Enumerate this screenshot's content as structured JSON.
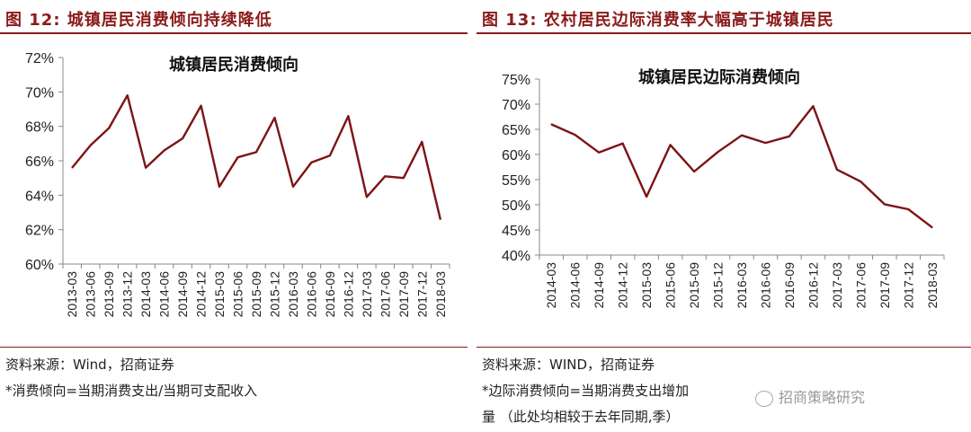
{
  "figures": [
    {
      "header": "图 12:   城镇居民消费倾向持续降低",
      "source": "资料来源：Wind，招商证券",
      "note": "*消费倾向=当期消费支出/当期可支配收入"
    },
    {
      "header": "图 13:   农村居民边际消费率大幅高于城镇居民",
      "source": "资料来源：WIND，招商证券",
      "note": "*边际消费倾向=当期消费支出增加",
      "note2": "量  （此处均相较于去年同期,季）",
      "watermark": "招商策略研究"
    }
  ],
  "chart_data": [
    {
      "type": "line",
      "title": "城镇居民消费倾向",
      "x": [
        "2013-03",
        "2013-06",
        "2013-09",
        "2013-12",
        "2014-03",
        "2014-06",
        "2014-09",
        "2014-12",
        "2015-03",
        "2015-06",
        "2015-09",
        "2015-12",
        "2016-03",
        "2016-06",
        "2016-09",
        "2016-12",
        "2017-03",
        "2017-06",
        "2017-09",
        "2017-12",
        "2018-03"
      ],
      "values": [
        65.6,
        66.9,
        67.9,
        69.8,
        65.6,
        66.6,
        67.3,
        69.2,
        64.5,
        66.2,
        66.5,
        68.5,
        64.5,
        65.9,
        66.3,
        68.6,
        63.9,
        65.1,
        65.0,
        67.1,
        62.6
      ],
      "ylim": [
        60,
        72
      ],
      "yticks": [
        60,
        62,
        64,
        66,
        68,
        70,
        72
      ],
      "ytick_labels": [
        "60%",
        "62%",
        "64%",
        "66%",
        "68%",
        "70%",
        "72%"
      ],
      "color": "#7b1416",
      "grid": false
    },
    {
      "type": "line",
      "title": "城镇居民边际消费倾向",
      "x": [
        "2014-03",
        "2014-06",
        "2014-09",
        "2014-12",
        "2015-03",
        "2015-06",
        "2015-09",
        "2015-12",
        "2016-03",
        "2016-06",
        "2016-09",
        "2016-12",
        "2017-03",
        "2017-06",
        "2017-09",
        "2017-12",
        "2018-03"
      ],
      "values": [
        66.0,
        63.9,
        60.4,
        62.2,
        51.6,
        61.9,
        56.6,
        60.5,
        63.8,
        62.3,
        63.6,
        69.6,
        57.0,
        54.6,
        50.1,
        49.1,
        45.5
      ],
      "ylim": [
        40,
        75
      ],
      "yticks": [
        40,
        45,
        50,
        55,
        60,
        65,
        70,
        75
      ],
      "ytick_labels": [
        "40%",
        "45%",
        "50%",
        "55%",
        "60%",
        "65%",
        "70%",
        "75%"
      ],
      "color": "#7b1416",
      "grid": false
    }
  ]
}
